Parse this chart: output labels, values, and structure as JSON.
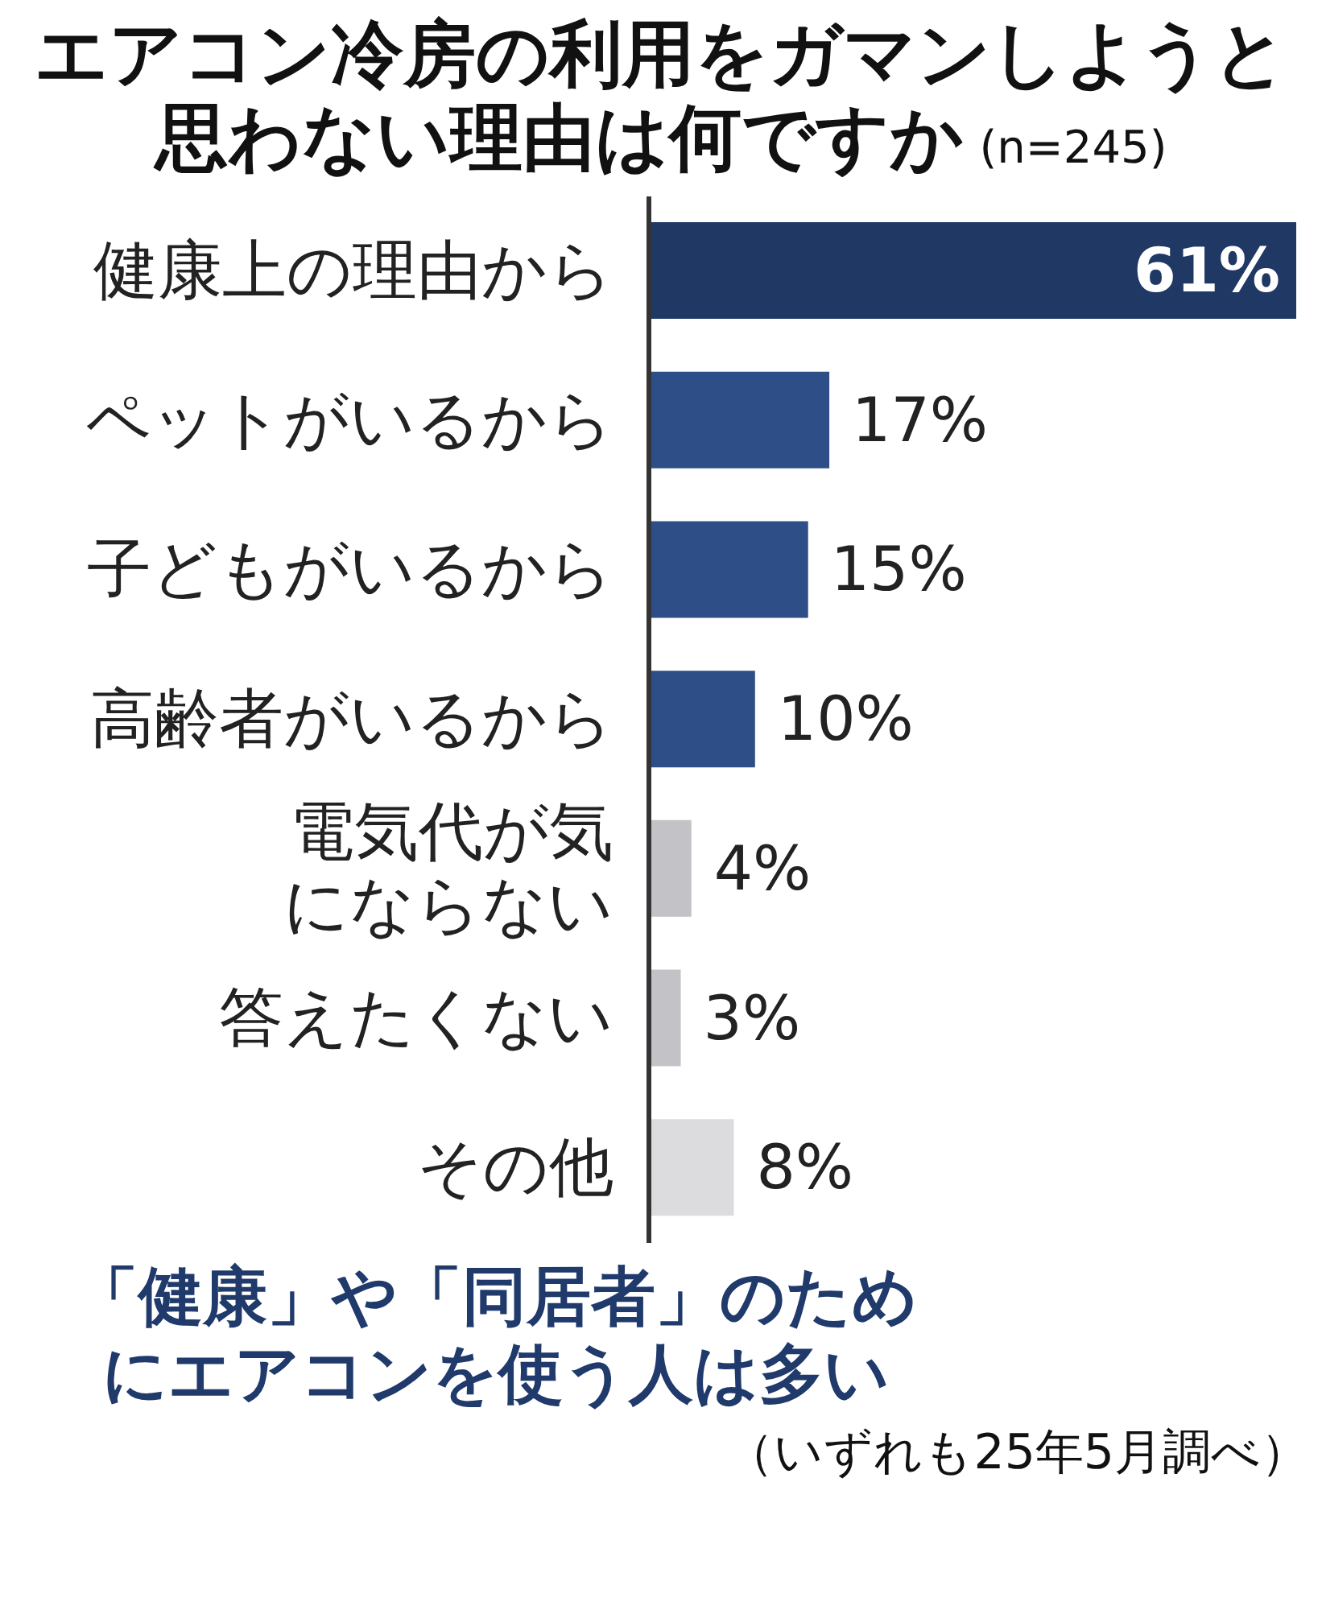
{
  "chart_data": {
    "type": "bar",
    "orientation": "horizontal",
    "title": "エアコン冷房の利用をガマンしようと思わない理由は何ですか",
    "subtitle": "(n=245)",
    "categories": [
      "健康上の理由から",
      "ペットがいるから",
      "子どもがいるから",
      "高齢者がいるから",
      "電気代が気にならない",
      "答えたくない",
      "その他"
    ],
    "values": [
      61,
      17,
      15,
      10,
      4,
      3,
      8
    ],
    "value_labels": [
      "61%",
      "17%",
      "15%",
      "10%",
      "4%",
      "3%",
      "8%"
    ],
    "colors": [
      "#1f3864",
      "#2d4e86",
      "#2d4e86",
      "#2d4e86",
      "#c3c3c7",
      "#c3c3c7",
      "#dcdcde"
    ],
    "annotations": [
      "「健康」や「同居者」のためにエアコンを使う人は多い",
      "（いずれも25年5月調べ）"
    ]
  }
}
